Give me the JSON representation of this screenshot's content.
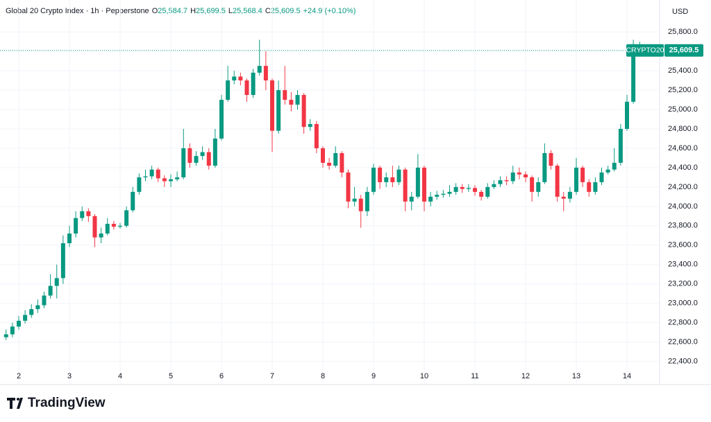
{
  "chart_data": {
    "type": "candlestick",
    "title": "Global 20 Crypto Index · 1h · Pepperstone",
    "ohlc_header": [
      {
        "label": "O",
        "value": "25,584.7"
      },
      {
        "label": "H",
        "value": "25,699.5"
      },
      {
        "label": "L",
        "value": "25,568.4"
      },
      {
        "label": "C",
        "value": "25,609.5"
      }
    ],
    "change": "+24.9 (+0.10%)",
    "currency": "USD",
    "symbol_tag": "CRYPTO20",
    "last_value_label": "25,609.5",
    "up_color": "#089981",
    "down_color": "#f23645",
    "grid": true,
    "categories": [
      null,
      null,
      "2",
      null,
      null,
      null,
      null,
      null,
      null,
      null,
      "3",
      null,
      null,
      null,
      null,
      null,
      null,
      null,
      "4",
      null,
      null,
      null,
      null,
      null,
      null,
      null,
      "5",
      null,
      null,
      null,
      null,
      null,
      null,
      null,
      "6",
      null,
      null,
      null,
      null,
      null,
      null,
      null,
      "7",
      null,
      null,
      null,
      null,
      null,
      null,
      null,
      "8",
      null,
      null,
      null,
      null,
      null,
      null,
      null,
      "9",
      null,
      null,
      null,
      null,
      null,
      null,
      null,
      "10",
      null,
      null,
      null,
      null,
      null,
      null,
      null,
      "11",
      null,
      null,
      null,
      null,
      null,
      null,
      null,
      "12",
      null,
      null,
      null,
      null,
      null,
      null,
      null,
      "13",
      null,
      null,
      null,
      null,
      null,
      null,
      null,
      "14",
      null,
      null
    ],
    "open": [
      22650,
      22680,
      22760,
      22820,
      22880,
      22940,
      22980,
      23080,
      23180,
      23260,
      23620,
      23720,
      23880,
      23950,
      23900,
      23680,
      23720,
      23820,
      23790,
      23800,
      23960,
      24150,
      24300,
      24310,
      24380,
      24290,
      24260,
      24280,
      24300,
      24600,
      24450,
      24520,
      24560,
      24420,
      24700,
      25100,
      25300,
      25340,
      25300,
      25150,
      25380,
      25450,
      25300,
      24780,
      25200,
      25100,
      25050,
      25150,
      24820,
      24850,
      24600,
      24450,
      24420,
      24550,
      24350,
      24050,
      24080,
      23950,
      24150,
      24400,
      24250,
      24300,
      24250,
      24380,
      24050,
      24100,
      24400,
      24050,
      24100,
      24120,
      24130,
      24150,
      24200,
      24180,
      24190,
      24150,
      24100,
      24200,
      24230,
      24270,
      24260,
      24350,
      24330,
      24300,
      24150,
      24250,
      24550,
      24420,
      24100,
      24080,
      24150,
      24400,
      24250,
      24150,
      24250,
      24350,
      24380,
      24450,
      24800,
      25080,
      25584.7
    ],
    "high": [
      22730,
      22800,
      22870,
      22930,
      22990,
      23040,
      23120,
      23300,
      23400,
      23700,
      23800,
      23950,
      24000,
      23980,
      23920,
      23780,
      23880,
      23850,
      23830,
      24000,
      24200,
      24340,
      24380,
      24420,
      24400,
      24320,
      24330,
      24360,
      24800,
      24650,
      24570,
      24620,
      24600,
      24800,
      25150,
      25450,
      25400,
      25380,
      25320,
      25420,
      25720,
      25600,
      25320,
      25300,
      25450,
      25180,
      25200,
      25170,
      24900,
      24880,
      24620,
      24500,
      24620,
      24570,
      24380,
      24200,
      24120,
      24200,
      24440,
      24420,
      24350,
      24420,
      24420,
      24400,
      24150,
      24540,
      24420,
      24150,
      24160,
      24170,
      24220,
      24240,
      24230,
      24230,
      24220,
      24170,
      24240,
      24270,
      24310,
      24310,
      24420,
      24400,
      24360,
      24320,
      24300,
      24650,
      24580,
      24440,
      24150,
      24200,
      24500,
      24420,
      24280,
      24300,
      24400,
      24420,
      24600,
      24850,
      25150,
      25720,
      25699.5
    ],
    "low": [
      22620,
      22650,
      22730,
      22790,
      22850,
      22900,
      22950,
      23050,
      23050,
      23200,
      23580,
      23680,
      23850,
      23840,
      23580,
      23620,
      23700,
      23760,
      23770,
      23780,
      23940,
      24120,
      24260,
      24280,
      24250,
      24200,
      24200,
      24260,
      24280,
      24400,
      24420,
      24480,
      24380,
      24400,
      24680,
      25080,
      25260,
      25250,
      25080,
      25120,
      25350,
      25200,
      24560,
      24750,
      25050,
      24980,
      25000,
      24750,
      24780,
      24550,
      24400,
      24380,
      24400,
      24300,
      23980,
      24000,
      23780,
      23900,
      24120,
      24180,
      24200,
      24200,
      24220,
      23950,
      23960,
      24080,
      23950,
      24000,
      24070,
      24090,
      24100,
      24120,
      24140,
      24150,
      24110,
      24060,
      24080,
      24180,
      24200,
      24220,
      24230,
      24280,
      24250,
      24050,
      24100,
      24230,
      24380,
      24050,
      23950,
      24040,
      24120,
      24200,
      24100,
      24120,
      24220,
      24330,
      24360,
      24420,
      24780,
      25060,
      25568.4
    ],
    "close": [
      22680,
      22760,
      22820,
      22880,
      22940,
      22980,
      23080,
      23180,
      23260,
      23620,
      23720,
      23880,
      23950,
      23900,
      23680,
      23720,
      23820,
      23790,
      23800,
      23960,
      24150,
      24300,
      24310,
      24380,
      24290,
      24260,
      24280,
      24300,
      24600,
      24450,
      24520,
      24560,
      24420,
      24700,
      25100,
      25300,
      25340,
      25300,
      25150,
      25380,
      25450,
      25300,
      24780,
      25200,
      25100,
      25050,
      25150,
      24820,
      24850,
      24600,
      24450,
      24420,
      24550,
      24350,
      24050,
      24080,
      23950,
      24150,
      24400,
      24250,
      24300,
      24250,
      24380,
      24050,
      24100,
      24400,
      24050,
      24100,
      24120,
      24130,
      24150,
      24200,
      24180,
      24190,
      24150,
      24100,
      24200,
      24230,
      24270,
      24260,
      24350,
      24330,
      24300,
      24150,
      24250,
      24550,
      24420,
      24100,
      24080,
      24150,
      24400,
      24250,
      24150,
      24250,
      24350,
      24380,
      24450,
      24800,
      25080,
      25584.7,
      25609.5
    ],
    "ylim": [
      22340,
      26130
    ],
    "yticks": [
      {
        "value": 22400,
        "label": "22,400.0"
      },
      {
        "value": 22600,
        "label": "22,600.0"
      },
      {
        "value": 22800,
        "label": "22,800.0"
      },
      {
        "value": 23000,
        "label": "23,000.0"
      },
      {
        "value": 23200,
        "label": "23,200.0"
      },
      {
        "value": 23400,
        "label": "23,400.0"
      },
      {
        "value": 23600,
        "label": "23,600.0"
      },
      {
        "value": 23800,
        "label": "23,800.0"
      },
      {
        "value": 24000,
        "label": "24,000.0"
      },
      {
        "value": 24200,
        "label": "24,200.0"
      },
      {
        "value": 24400,
        "label": "24,400.0"
      },
      {
        "value": 24600,
        "label": "24,600.0"
      },
      {
        "value": 24800,
        "label": "24,800.0"
      },
      {
        "value": 25000,
        "label": "25,000.0"
      },
      {
        "value": 25200,
        "label": "25,200.0"
      },
      {
        "value": 25400,
        "label": "25,400.0"
      },
      {
        "value": 25600,
        "label": "25,600.0"
      },
      {
        "value": 25800,
        "label": "25,800.0"
      }
    ]
  },
  "footer": {
    "brand": "TradingView"
  }
}
